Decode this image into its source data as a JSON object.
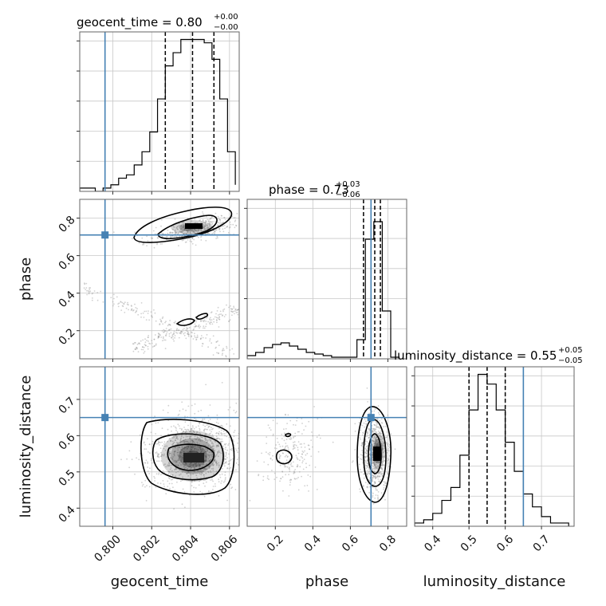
{
  "chart_data": {
    "type": "corner",
    "parameters": [
      "geocent_time",
      "phase",
      "luminosity_distance"
    ],
    "truths": {
      "geocent_time": 0.7996,
      "phase": 0.71,
      "luminosity_distance": 0.65
    },
    "titles": [
      {
        "param": "geocent_time",
        "main": "geocent_time = 0.80",
        "sup": "+0.00",
        "sub": "−0.00"
      },
      {
        "param": "phase",
        "main": "phase = 0.73",
        "sup": "+0.03",
        "sub": "−0.06"
      },
      {
        "param": "luminosity_distance",
        "main": "luminosity_distance = 0.55",
        "sup": "+0.05",
        "sub": "−0.05"
      }
    ],
    "axis_labels": {
      "bottom": [
        "geocent_time",
        "phase",
        "luminosity_distance"
      ],
      "left": [
        "phase",
        "luminosity_distance"
      ]
    },
    "ranges": {
      "geocent_time": [
        0.7983,
        0.8065
      ],
      "phase": [
        0.05,
        0.9
      ],
      "luminosity_distance": [
        0.35,
        0.79
      ]
    },
    "ticks": {
      "geocent_time": [
        {
          "value": 0.8,
          "label": "0.800"
        },
        {
          "value": 0.802,
          "label": "0.802"
        },
        {
          "value": 0.804,
          "label": "0.804"
        },
        {
          "value": 0.806,
          "label": "0.806"
        }
      ],
      "phase": [
        {
          "value": 0.2,
          "label": "0.2"
        },
        {
          "value": 0.4,
          "label": "0.4"
        },
        {
          "value": 0.6,
          "label": "0.6"
        },
        {
          "value": 0.8,
          "label": "0.8"
        }
      ],
      "luminosity_distance": [
        {
          "value": 0.4,
          "label": "0.4"
        },
        {
          "value": 0.5,
          "label": "0.5"
        },
        {
          "value": 0.6,
          "label": "0.6"
        },
        {
          "value": 0.7,
          "label": "0.7"
        }
      ]
    },
    "quantiles": {
      "geocent_time": [
        0.8027,
        0.8041,
        0.8052
      ],
      "phase": [
        0.67,
        0.73,
        0.76
      ],
      "luminosity_distance": [
        0.5,
        0.55,
        0.6
      ]
    },
    "histograms": {
      "geocent_time": {
        "bins": [
          0.7983,
          0.7987,
          0.7991,
          0.7995,
          0.7999,
          0.8003,
          0.8007,
          0.8011,
          0.8015,
          0.8019,
          0.8023,
          0.8027,
          0.8031,
          0.8035,
          0.8039,
          0.8043,
          0.8047,
          0.8051,
          0.8055,
          0.8059,
          0.8063
        ],
        "counts": [
          1,
          1,
          0,
          1,
          2,
          4,
          5,
          8,
          12,
          18,
          28,
          38,
          42,
          46,
          46,
          46,
          45,
          40,
          28,
          12,
          2
        ]
      },
      "phase": {
        "bins": [
          0.05,
          0.095,
          0.14,
          0.185,
          0.23,
          0.275,
          0.32,
          0.365,
          0.41,
          0.455,
          0.5,
          0.545,
          0.59,
          0.635,
          0.68,
          0.725,
          0.77,
          0.815,
          0.86
        ],
        "counts": [
          2,
          4,
          7,
          9,
          10,
          8,
          6,
          4,
          3,
          2,
          1,
          1,
          1,
          12,
          75,
          86,
          30,
          1
        ],
        "ylim": [
          0,
          100
        ]
      },
      "luminosity_distance": {
        "bins": [
          0.35,
          0.375,
          0.4,
          0.425,
          0.45,
          0.475,
          0.5,
          0.525,
          0.55,
          0.575,
          0.6,
          0.625,
          0.65,
          0.675,
          0.7,
          0.725,
          0.75,
          0.775
        ],
        "counts": [
          1,
          2,
          4,
          8,
          12,
          22,
          36,
          47,
          44,
          36,
          26,
          17,
          10,
          6,
          3,
          1,
          1
        ]
      }
    },
    "grid": true
  }
}
